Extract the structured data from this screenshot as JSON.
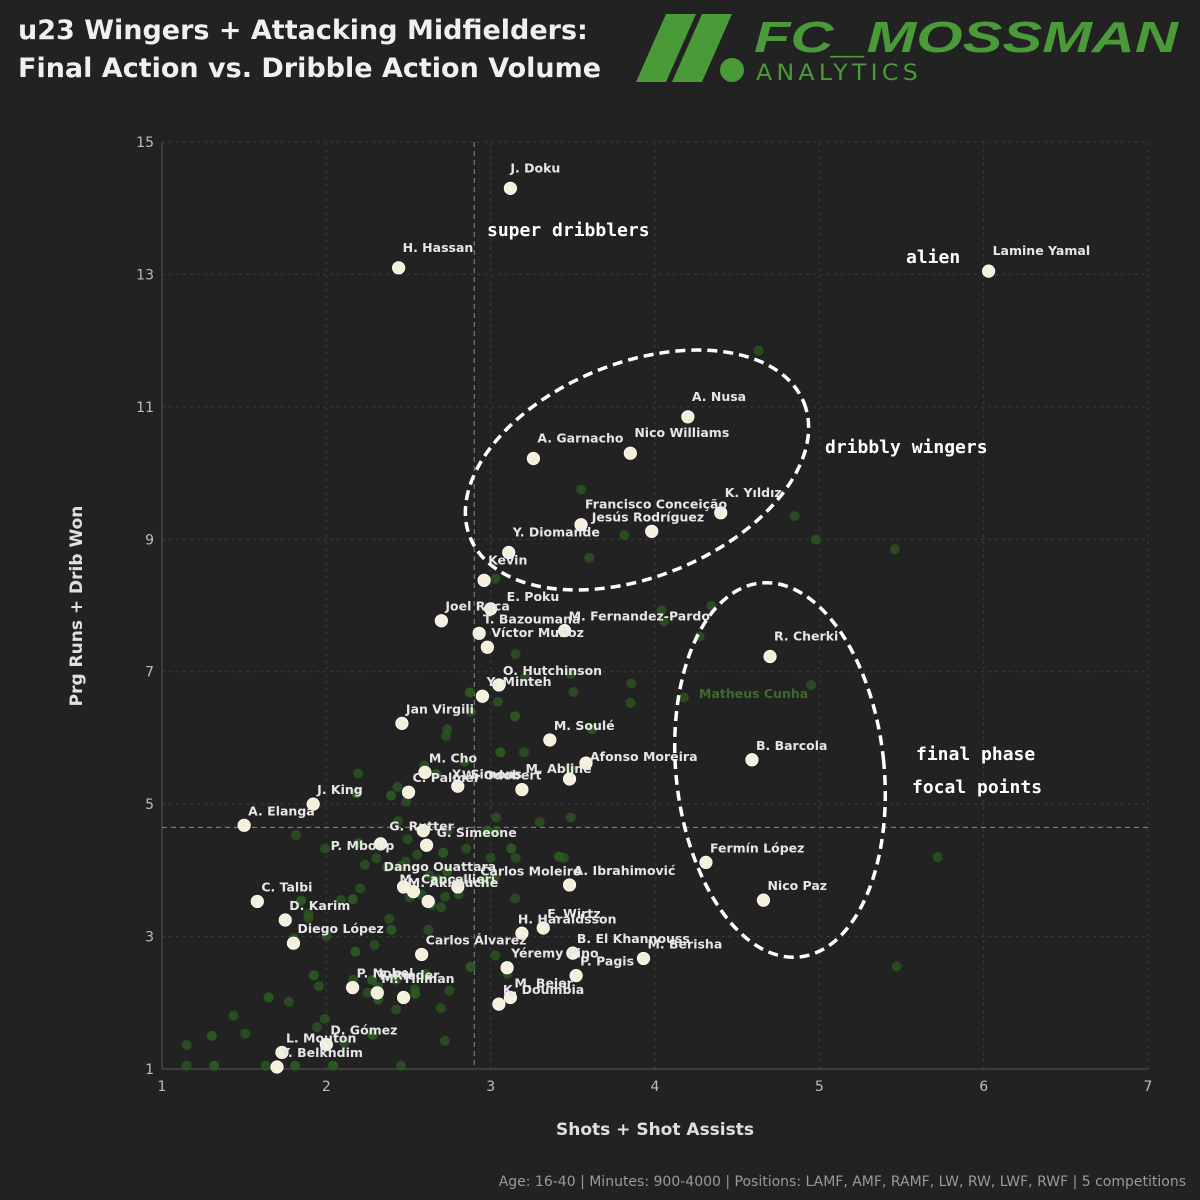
{
  "header": {
    "title_line1": "u23 Wingers + Attacking Midfielders:",
    "title_line2": "Final Action vs. Dribble Action Volume",
    "brand_main": "FC_MOSSMAN",
    "brand_sub": "ANALYTICS",
    "brand_color": "#4a9a3a"
  },
  "footer": {
    "text": "Age: 16-40 | Minutes: 900-4000 | Positions: LAMF, AMF, RAMF, LW, RW, LWF, RWF | 5 competitions"
  },
  "chart_data": {
    "type": "scatter",
    "xlabel": "Shots + Shot Assists",
    "ylabel": "Prg Runs + Drib Won",
    "xlim": [
      1,
      7
    ],
    "ylim": [
      1,
      15
    ],
    "xticks": [
      1,
      2,
      3,
      4,
      5,
      6,
      7
    ],
    "yticks": [
      1,
      3,
      5,
      7,
      9,
      11,
      13,
      15
    ],
    "grid": true,
    "reference_lines": {
      "x": 2.9,
      "y": 4.65
    },
    "highlight_color": "#f4f0dc",
    "background_color": "#2e5a22",
    "highlighted": [
      {
        "name": "J. Doku",
        "x": 3.12,
        "y": 14.3
      },
      {
        "name": "H. Hassan",
        "x": 2.44,
        "y": 13.1
      },
      {
        "name": "Lamine Yamal",
        "x": 6.03,
        "y": 13.05
      },
      {
        "name": "A. Nusa",
        "x": 4.2,
        "y": 10.85
      },
      {
        "name": "A. Garnacho",
        "x": 3.26,
        "y": 10.22
      },
      {
        "name": "Nico Williams",
        "x": 3.85,
        "y": 10.3
      },
      {
        "name": "K. Yıldız",
        "x": 4.4,
        "y": 9.4
      },
      {
        "name": "Francisco Conceição",
        "x": 3.55,
        "y": 9.22
      },
      {
        "name": "Jesús Rodríguez",
        "x": 3.98,
        "y": 9.12
      },
      {
        "name": "Y. Diomande",
        "x": 3.11,
        "y": 8.8
      },
      {
        "name": "Kevin",
        "x": 2.96,
        "y": 8.38
      },
      {
        "name": "E. Poku",
        "x": 3.0,
        "y": 7.95
      },
      {
        "name": "Joel Roca",
        "x": 2.7,
        "y": 7.77
      },
      {
        "name": "T. Bazoumana",
        "x": 2.93,
        "y": 7.58
      },
      {
        "name": "M. Fernandez-Pardo",
        "x": 3.45,
        "y": 7.62
      },
      {
        "name": "Víctor Muñoz",
        "x": 2.98,
        "y": 7.37
      },
      {
        "name": "R. Cherki",
        "x": 4.7,
        "y": 7.23
      },
      {
        "name": "O. Hutchinson",
        "x": 3.05,
        "y": 6.8
      },
      {
        "name": "Y. Minteh",
        "x": 2.95,
        "y": 6.63
      },
      {
        "name": "Jan Virgili",
        "x": 2.46,
        "y": 6.22
      },
      {
        "name": "M. Soulé",
        "x": 3.36,
        "y": 5.97
      },
      {
        "name": "B. Barcola",
        "x": 4.59,
        "y": 5.67
      },
      {
        "name": "M. Cho",
        "x": 2.6,
        "y": 5.48
      },
      {
        "name": "X. Simons",
        "x": 2.8,
        "y": 5.27
      },
      {
        "name": "W. Odobert",
        "x": 3.19,
        "y": 5.22
      },
      {
        "name": "M. Abline",
        "x": 3.48,
        "y": 5.38
      },
      {
        "name": "Afonso Moreira",
        "x": 3.58,
        "y": 5.62
      },
      {
        "name": "J. King",
        "x": 1.92,
        "y": 5.0
      },
      {
        "name": "A. Elanga",
        "x": 1.5,
        "y": 4.68
      },
      {
        "name": "C. Palmer",
        "x": 2.5,
        "y": 5.18
      },
      {
        "name": "G. Rutter",
        "x": 2.59,
        "y": 4.6
      },
      {
        "name": "G. Simeone",
        "x": 2.61,
        "y": 4.38
      },
      {
        "name": "P. Mboup",
        "x": 2.33,
        "y": 4.4
      },
      {
        "name": "Dango Ouattara",
        "x": 2.47,
        "y": 3.75
      },
      {
        "name": "M. Cancellieri",
        "x": 2.53,
        "y": 3.68
      },
      {
        "name": "M. Akliouche",
        "x": 2.8,
        "y": 3.75
      },
      {
        "name": "Carlos Moleiro",
        "x": 2.62,
        "y": 3.53
      },
      {
        "name": "A. Ibrahimović",
        "x": 3.48,
        "y": 3.78
      },
      {
        "name": "Fermín López",
        "x": 4.31,
        "y": 4.12
      },
      {
        "name": "Nico Paz",
        "x": 4.66,
        "y": 3.55
      },
      {
        "name": "C. Talbi",
        "x": 1.58,
        "y": 3.53
      },
      {
        "name": "D. Karim",
        "x": 1.75,
        "y": 3.25
      },
      {
        "name": "Diego López",
        "x": 1.8,
        "y": 2.9
      },
      {
        "name": "F. Wirtz",
        "x": 3.32,
        "y": 3.13
      },
      {
        "name": "H. Haraldsson",
        "x": 3.19,
        "y": 3.05
      },
      {
        "name": "Carlos Álvarez",
        "x": 2.58,
        "y": 2.73
      },
      {
        "name": "B. El Khannouss",
        "x": 3.5,
        "y": 2.75
      },
      {
        "name": "M. Berisha",
        "x": 3.93,
        "y": 2.67
      },
      {
        "name": "Yéremy Pino",
        "x": 3.1,
        "y": 2.53
      },
      {
        "name": "P. Pagis",
        "x": 3.52,
        "y": 2.41
      },
      {
        "name": "P. Nobel",
        "x": 2.16,
        "y": 2.23
      },
      {
        "name": "M. Tillman",
        "x": 2.31,
        "y": 2.15
      },
      {
        "name": "T. Rieder",
        "x": 2.47,
        "y": 2.08
      },
      {
        "name": "M. Beier",
        "x": 3.12,
        "y": 2.08
      },
      {
        "name": "K. Doumbia",
        "x": 3.05,
        "y": 1.98
      },
      {
        "name": "D. Gómez",
        "x": 2.0,
        "y": 1.37
      },
      {
        "name": "L. Mouton",
        "x": 1.73,
        "y": 1.25
      },
      {
        "name": "Y. Belkhdim",
        "x": 1.7,
        "y": 1.03
      },
      {
        "name": "Matheus Cunha",
        "x": 4.28,
        "y": 6.6
      }
    ],
    "annotations": [
      {
        "text": "super dribblers"
      },
      {
        "text": "alien"
      },
      {
        "text": "dribbly wingers"
      },
      {
        "text": "final phase"
      },
      {
        "text": "focal points"
      }
    ]
  }
}
